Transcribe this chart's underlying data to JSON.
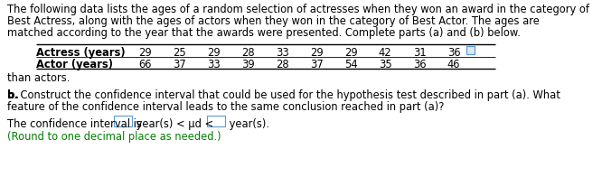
{
  "intro_text_line1": "The following data lists the ages of a random selection of actresses when they won an award in the category of",
  "intro_text_line2": "Best Actress, along with the ages of actors when they won in the category of Best Actor. The ages are",
  "intro_text_line3": "matched according to the year that the awards were presented. Complete parts (a) and (b) below.",
  "table_label1": "Actress (years)",
  "table_label2": "Actor (years)",
  "table_data1": [
    "29",
    "25",
    "29",
    "28",
    "33",
    "29",
    "29",
    "42",
    "31",
    "36"
  ],
  "table_data2": [
    "66",
    "37",
    "33",
    "39",
    "28",
    "37",
    "54",
    "35",
    "36",
    "46"
  ],
  "cutoff_text": "than actors.",
  "part_b_bold": "b.",
  "part_b_line1_rest": " Construct the confidence interval that could be used for the hypothesis test described in part (a). What",
  "part_b_line2": "feature of the confidence interval leads to the same conclusion reached in part (a)?",
  "ci_text_before": "The confidence interval is",
  "ci_text_middle": " year(s) < μd <",
  "ci_text_after": " year(s).",
  "round_note": "(Round to one decimal place as needed.)",
  "bg_color": "#ffffff",
  "text_color": "#000000",
  "green_color": "#008000",
  "box_color": "#5b9bd5",
  "font_size": 8.3
}
